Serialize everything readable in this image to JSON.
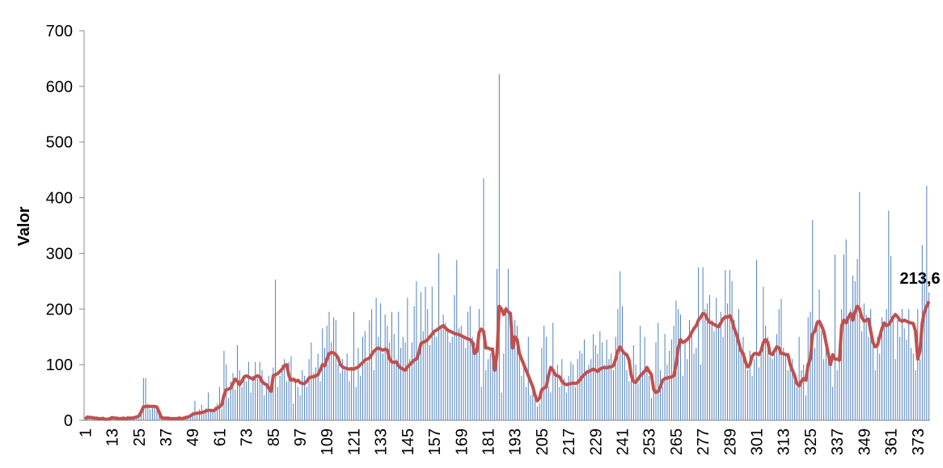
{
  "chart_data": {
    "type": "bar-line",
    "y_label": "Valor",
    "ylim": [
      0,
      700
    ],
    "yticks": [
      0,
      100,
      200,
      300,
      400,
      500,
      600,
      700
    ],
    "categories": [
      "1",
      null,
      null,
      null,
      null,
      null,
      null,
      null,
      null,
      null,
      null,
      null,
      "13",
      null,
      null,
      null,
      null,
      null,
      null,
      null,
      null,
      null,
      null,
      null,
      "25",
      null,
      null,
      null,
      null,
      null,
      null,
      null,
      null,
      null,
      null,
      null,
      "37",
      null,
      null,
      null,
      null,
      null,
      null,
      null,
      null,
      null,
      null,
      null,
      "49",
      null,
      null,
      null,
      null,
      null,
      null,
      null,
      null,
      null,
      null,
      null,
      "61",
      null,
      null,
      null,
      null,
      null,
      null,
      null,
      null,
      null,
      null,
      null,
      "73",
      null,
      null,
      null,
      null,
      null,
      null,
      null,
      null,
      null,
      null,
      null,
      "85",
      null,
      null,
      null,
      null,
      null,
      null,
      null,
      null,
      null,
      null,
      null,
      "97",
      null,
      null,
      null,
      null,
      null,
      null,
      null,
      null,
      null,
      null,
      null,
      "109",
      null,
      null,
      null,
      null,
      null,
      null,
      null,
      null,
      null,
      null,
      null,
      "121",
      null,
      null,
      null,
      null,
      null,
      null,
      null,
      null,
      null,
      null,
      null,
      "133",
      null,
      null,
      null,
      null,
      null,
      null,
      null,
      null,
      null,
      null,
      null,
      "145",
      null,
      null,
      null,
      null,
      null,
      null,
      null,
      null,
      null,
      null,
      null,
      "157",
      null,
      null,
      null,
      null,
      null,
      null,
      null,
      null,
      null,
      null,
      null,
      "169",
      null,
      null,
      null,
      null,
      null,
      null,
      null,
      null,
      null,
      null,
      null,
      "181",
      null,
      null,
      null,
      null,
      null,
      null,
      null,
      null,
      null,
      null,
      null,
      "193",
      null,
      null,
      null,
      null,
      null,
      null,
      null,
      null,
      null,
      null,
      null,
      "205",
      null,
      null,
      null,
      null,
      null,
      null,
      null,
      null,
      null,
      null,
      null,
      "217",
      null,
      null,
      null,
      null,
      null,
      null,
      null,
      null,
      null,
      null,
      null,
      "229",
      null,
      null,
      null,
      null,
      null,
      null,
      null,
      null,
      null,
      null,
      null,
      "241",
      null,
      null,
      null,
      null,
      null,
      null,
      null,
      null,
      null,
      null,
      null,
      "253",
      null,
      null,
      null,
      null,
      null,
      null,
      null,
      null,
      null,
      null,
      null,
      "265",
      null,
      null,
      null,
      null,
      null,
      null,
      null,
      null,
      null,
      null,
      null,
      "277",
      null,
      null,
      null,
      null,
      null,
      null,
      null,
      null,
      null,
      null,
      null,
      "289",
      null,
      null,
      null,
      null,
      null,
      null,
      null,
      null,
      null,
      null,
      null,
      "301",
      null,
      null,
      null,
      null,
      null,
      null,
      null,
      null,
      null,
      null,
      null,
      "313",
      null,
      null,
      null,
      null,
      null,
      null,
      null,
      null,
      null,
      null,
      null,
      "325",
      null,
      null,
      null,
      null,
      null,
      null,
      null,
      null,
      null,
      null,
      null,
      "337",
      null,
      null,
      null,
      null,
      null,
      null,
      null,
      null,
      null,
      null,
      null,
      "349",
      null,
      null,
      null,
      null,
      null,
      null,
      null,
      null,
      null,
      null,
      null,
      "361",
      null,
      null,
      null,
      null,
      null,
      null,
      null,
      null,
      null,
      null,
      null,
      "373",
      null,
      null,
      null,
      null,
      null
    ],
    "series": [
      {
        "kind": "bar",
        "color": "#4f81bd",
        "values": [
          5,
          8,
          3,
          2,
          6,
          4,
          1,
          3,
          7,
          2,
          4,
          3,
          6,
          2,
          4,
          1,
          3,
          5,
          2,
          8,
          4,
          3,
          2,
          6,
          10,
          18,
          76,
          76,
          30,
          20,
          25,
          22,
          18,
          12,
          4,
          2,
          3,
          5,
          2,
          4,
          6,
          3,
          8,
          2,
          5,
          9,
          4,
          6,
          15,
          35,
          10,
          20,
          28,
          12,
          22,
          50,
          18,
          14,
          25,
          30,
          60,
          20,
          125,
          100,
          40,
          70,
          85,
          55,
          135,
          90,
          60,
          80,
          70,
          105,
          50,
          80,
          105,
          75,
          105,
          90,
          45,
          60,
          80,
          55,
          95,
          253,
          60,
          80,
          100,
          110,
          70,
          105,
          115,
          30,
          75,
          60,
          45,
          90,
          80,
          60,
          110,
          140,
          85,
          95,
          120,
          70,
          165,
          130,
          170,
          195,
          140,
          185,
          180,
          100,
          85,
          110,
          90,
          120,
          70,
          95,
          195,
          60,
          130,
          80,
          150,
          160,
          105,
          180,
          200,
          90,
          220,
          150,
          210,
          120,
          190,
          170,
          140,
          195,
          155,
          110,
          195,
          130,
          150,
          140,
          220,
          110,
          140,
          205,
          250,
          130,
          230,
          160,
          240,
          200,
          135,
          240,
          160,
          150,
          300,
          170,
          190,
          175,
          160,
          140,
          150,
          225,
          288,
          165,
          170,
          150,
          130,
          195,
          205,
          150,
          140,
          120,
          200,
          60,
          435,
          90,
          110,
          120,
          125,
          95,
          272,
          622,
          50,
          120,
          205,
          272,
          180,
          170,
          180,
          170,
          130,
          80,
          100,
          60,
          150,
          45,
          60,
          40,
          25,
          30,
          130,
          170,
          150,
          60,
          50,
          175,
          80,
          100,
          60,
          110,
          75,
          50,
          80,
          105,
          100,
          60,
          110,
          125,
          120,
          145,
          90,
          100,
          110,
          155,
          135,
          120,
          160,
          140,
          100,
          145,
          110,
          120,
          90,
          150,
          200,
          268,
          205,
          120,
          90,
          70,
          80,
          135,
          100,
          65,
          170,
          90,
          150,
          95,
          80,
          40,
          60,
          140,
          175,
          90,
          60,
          155,
          100,
          125,
          145,
          170,
          215,
          200,
          190,
          80,
          140,
          110,
          180,
          160,
          120,
          130,
          275,
          100,
          275,
          200,
          210,
          225,
          180,
          160,
          220,
          175,
          195,
          150,
          270,
          210,
          270,
          250,
          180,
          145,
          200,
          130,
          150,
          100,
          90,
          125,
          80,
          110,
          288,
          95,
          120,
          240,
          170,
          150,
          115,
          110,
          130,
          155,
          200,
          218,
          130,
          120,
          90,
          100,
          110,
          75,
          60,
          150,
          90,
          100,
          45,
          185,
          195,
          360,
          130,
          180,
          235,
          160,
          110,
          140,
          115,
          100,
          60,
          298,
          90,
          110,
          200,
          298,
          325,
          180,
          200,
          260,
          250,
          290,
          410,
          160,
          210,
          190,
          150,
          200,
          140,
          90,
          150,
          120,
          185,
          170,
          200,
          377,
          295,
          190,
          110,
          180,
          150,
          200,
          165,
          145,
          200,
          130,
          120,
          90,
          200,
          110,
          315,
          260,
          421,
          230
        ]
      },
      {
        "kind": "line",
        "color": "#c0504d",
        "values": [
          3,
          6,
          5,
          5,
          4,
          4,
          3,
          3,
          3,
          2,
          2,
          3,
          5,
          4,
          4,
          3,
          3,
          4,
          3,
          4,
          4,
          4,
          5,
          6,
          8,
          15,
          24,
          25,
          25,
          25,
          25,
          25,
          24,
          15,
          5,
          4,
          4,
          4,
          3,
          3,
          3,
          3,
          4,
          3,
          4,
          5,
          6,
          8,
          11,
          12,
          13,
          13,
          14,
          15,
          17,
          18,
          18,
          17,
          19,
          22,
          24,
          28,
          45,
          55,
          56,
          58,
          66,
          74,
          70,
          64,
          70,
          78,
          80,
          78,
          76,
          74,
          78,
          80,
          78,
          70,
          66,
          64,
          58,
          52,
          80,
          82,
          84,
          88,
          92,
          98,
          100,
          80,
          72,
          74,
          70,
          72,
          68,
          66,
          66,
          70,
          76,
          78,
          78,
          80,
          82,
          90,
          100,
          98,
          110,
          120,
          122,
          121,
          118,
          112,
          100,
          96,
          94,
          93,
          92,
          93,
          92,
          94,
          96,
          100,
          104,
          108,
          110,
          112,
          118,
          124,
          128,
          130,
          128,
          126,
          128,
          126,
          110,
          105,
          104,
          105,
          98,
          94,
          92,
          90,
          96,
          100,
          104,
          108,
          110,
          120,
          138,
          140,
          142,
          145,
          150,
          155,
          160,
          162,
          165,
          168,
          170,
          166,
          162,
          160,
          158,
          156,
          155,
          154,
          152,
          150,
          148,
          146,
          145,
          140,
          120,
          124,
          158,
          164,
          160,
          130,
          130,
          128,
          128,
          90,
          120,
          205,
          200,
          190,
          200,
          195,
          192,
          130,
          150,
          145,
          120,
          110,
          100,
          90,
          80,
          70,
          60,
          45,
          35,
          40,
          55,
          58,
          60,
          80,
          95,
          90,
          82,
          80,
          78,
          70,
          66,
          64,
          65,
          66,
          67,
          66,
          68,
          72,
          78,
          82,
          86,
          88,
          90,
          92,
          90,
          88,
          92,
          94,
          95,
          94,
          96,
          96,
          98,
          110,
          125,
          132,
          125,
          120,
          118,
          108,
          80,
          70,
          68,
          74,
          80,
          84,
          88,
          95,
          88,
          82,
          55,
          50,
          52,
          60,
          72,
          75,
          76,
          77,
          78,
          80,
          100,
          130,
          145,
          140,
          142,
          145,
          150,
          158,
          165,
          170,
          180,
          185,
          192,
          190,
          182,
          176,
          175,
          172,
          170,
          168,
          175,
          182,
          186,
          185,
          188,
          180,
          165,
          155,
          140,
          125,
          120,
          105,
          96,
          100,
          115,
          120,
          120,
          118,
          125,
          140,
          145,
          140,
          120,
          118,
          125,
          132,
          130,
          120,
          120,
          118,
          118,
          100,
          90,
          80,
          66,
          62,
          70,
          75,
          72,
          100,
          110,
          155,
          160,
          175,
          178,
          170,
          160,
          140,
          120,
          100,
          118,
          110,
          110,
          108,
          170,
          180,
          175,
          185,
          192,
          180,
          195,
          205,
          200,
          185,
          178,
          180,
          182,
          160,
          140,
          132,
          135,
          150,
          165,
          175,
          170,
          172,
          178,
          185,
          190,
          186,
          180,
          178,
          180,
          178,
          176,
          175,
          174,
          160,
          110,
          125,
          175,
          195,
          205,
          213.6
        ],
        "data_label": {
          "value": 213.6,
          "label": "213,6"
        }
      }
    ]
  }
}
